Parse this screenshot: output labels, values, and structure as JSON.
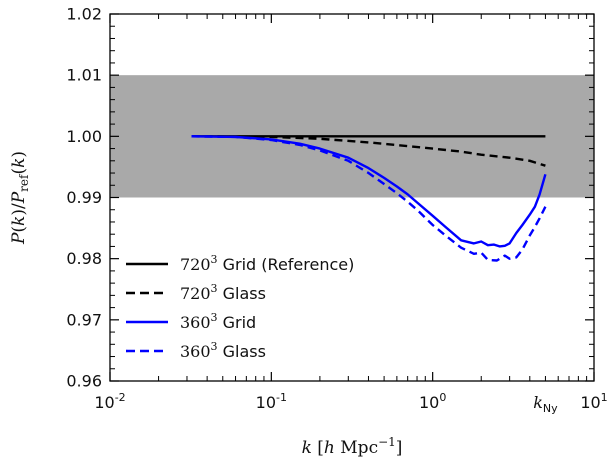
{
  "chart_data": {
    "type": "line",
    "xscale": "log",
    "xlim": [
      0.01,
      10
    ],
    "ylim": [
      0.96,
      1.02
    ],
    "shaded_band": {
      "y": [
        0.99,
        1.01
      ],
      "color": "#a9a9a9"
    },
    "xlabel": "k [h Mpc^-1]",
    "ylabel": "P(k)/P_ref(k)",
    "x_ticks": [
      {
        "value": 0.01,
        "base": "10",
        "exp": "-2"
      },
      {
        "value": 0.1,
        "base": "10",
        "exp": "-1"
      },
      {
        "value": 1,
        "base": "10",
        "exp": "0"
      },
      {
        "value": 10,
        "base": "10",
        "exp": "1"
      }
    ],
    "y_ticks": [
      "0.96",
      "0.97",
      "0.98",
      "0.99",
      "1.00",
      "1.01",
      "1.02"
    ],
    "annotation": {
      "text": "k_Ny",
      "x": 5.0
    },
    "legend_position": "lower-left",
    "series": [
      {
        "name": "720^3 Grid (Reference)",
        "color": "#000000",
        "dash": "solid",
        "x": [
          0.032,
          0.1,
          0.3,
          1.0,
          2.0,
          5.0
        ],
        "y": [
          1.0,
          1.0,
          1.0,
          1.0,
          1.0,
          1.0
        ]
      },
      {
        "name": "720^3 Glass",
        "color": "#000000",
        "dash": "dashed",
        "x": [
          0.032,
          0.1,
          0.2,
          0.4,
          0.7,
          1.0,
          1.5,
          2.0,
          3.0,
          4.0,
          5.0
        ],
        "y": [
          1.0,
          0.9999,
          0.9996,
          0.999,
          0.9984,
          0.998,
          0.9975,
          0.997,
          0.9965,
          0.996,
          0.9952
        ]
      },
      {
        "name": "360^3 Grid",
        "color": "#0000ff",
        "dash": "solid",
        "x": [
          0.032,
          0.06,
          0.1,
          0.15,
          0.2,
          0.3,
          0.4,
          0.5,
          0.6,
          0.7,
          0.8,
          1.0,
          1.2,
          1.5,
          1.8,
          2.0,
          2.2,
          2.4,
          2.6,
          2.8,
          3.0,
          3.3,
          3.6,
          4.0,
          4.3,
          4.6,
          5.0
        ],
        "y": [
          1.0,
          0.9999,
          0.9995,
          0.9988,
          0.998,
          0.9965,
          0.9948,
          0.9932,
          0.9918,
          0.9905,
          0.9892,
          0.987,
          0.9852,
          0.983,
          0.9825,
          0.9828,
          0.9822,
          0.9823,
          0.982,
          0.9821,
          0.9825,
          0.9842,
          0.9855,
          0.9872,
          0.9885,
          0.9905,
          0.9938
        ]
      },
      {
        "name": "360^3 Glass",
        "color": "#0000ff",
        "dash": "dashed",
        "x": [
          0.032,
          0.06,
          0.1,
          0.15,
          0.2,
          0.3,
          0.4,
          0.5,
          0.6,
          0.7,
          0.8,
          1.0,
          1.2,
          1.5,
          1.8,
          2.0,
          2.2,
          2.5,
          2.8,
          3.0,
          3.3,
          3.6,
          4.0,
          4.3,
          4.6,
          5.0
        ],
        "y": [
          1.0,
          0.9999,
          0.9994,
          0.9986,
          0.9977,
          0.996,
          0.994,
          0.9922,
          0.9907,
          0.9893,
          0.988,
          0.9855,
          0.9838,
          0.9818,
          0.9808,
          0.981,
          0.9798,
          0.9797,
          0.9805,
          0.98,
          0.9802,
          0.9815,
          0.9838,
          0.9852,
          0.9866,
          0.9885
        ]
      }
    ],
    "legend": [
      {
        "base": "720",
        "exp": "3",
        "text": " Grid (Reference)"
      },
      {
        "base": "720",
        "exp": "3",
        "text": " Glass"
      },
      {
        "base": "360",
        "exp": "3",
        "text": " Grid"
      },
      {
        "base": "360",
        "exp": "3",
        "text": " Glass"
      }
    ]
  }
}
